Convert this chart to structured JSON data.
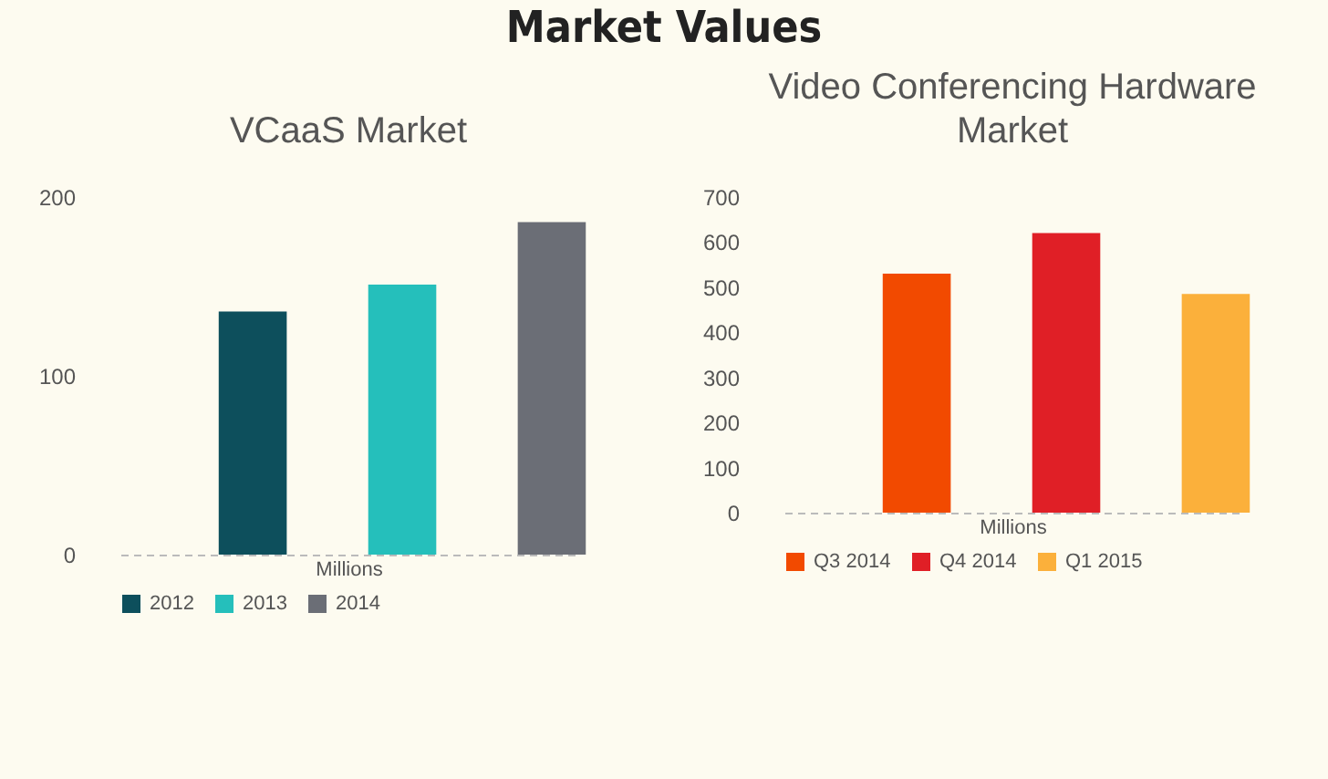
{
  "chart_data": [
    {
      "type": "other",
      "title": "Market Values"
    },
    {
      "type": "bar",
      "title": "VCaaS Market",
      "xlabel": "Millions",
      "categories": [
        null
      ],
      "ylim": [
        0,
        200
      ],
      "yticks": [
        0,
        100,
        200
      ],
      "legend": "bottom",
      "series": [
        {
          "name": "2012",
          "color": "#0d4f5c",
          "values": [
            136
          ]
        },
        {
          "name": "2013",
          "color": "#25bfbb",
          "values": [
            151
          ]
        },
        {
          "name": "2014",
          "color": "#6b6e76",
          "values": [
            186
          ]
        }
      ]
    },
    {
      "type": "bar",
      "title": "Video Conferencing Hardware Market",
      "xlabel": "Millions",
      "categories": [
        null
      ],
      "ylim": [
        0,
        700
      ],
      "yticks": [
        0,
        100,
        200,
        300,
        400,
        500,
        600,
        700
      ],
      "legend": "bottom",
      "series": [
        {
          "name": "Q3 2014",
          "color": "#f24a00",
          "values": [
            530
          ]
        },
        {
          "name": "Q4 2014",
          "color": "#e01f26",
          "values": [
            620
          ]
        },
        {
          "name": "Q1 2015",
          "color": "#fbb03b",
          "values": [
            485
          ]
        }
      ]
    }
  ]
}
